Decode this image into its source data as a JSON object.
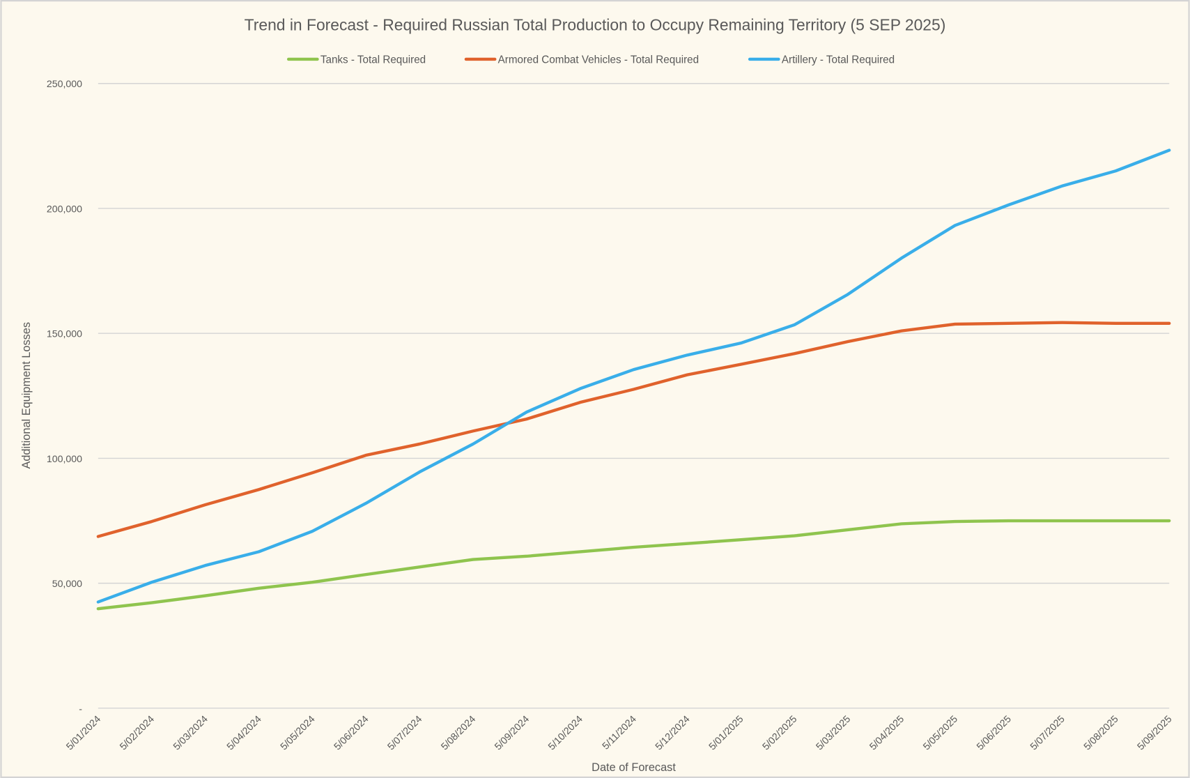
{
  "chart_data": {
    "type": "line",
    "title": "Trend in Forecast - Required Russian Total Production to Occupy Remaining Territory (5 SEP 2025)",
    "xlabel": "Date of Forecast",
    "ylabel": "Additional Equipment Losses",
    "ylim": [
      0,
      250000
    ],
    "yticks": [
      0,
      50000,
      100000,
      150000,
      200000,
      250000
    ],
    "ytick_labels": [
      "-",
      "50,000",
      "100,000",
      "150,000",
      "200,000",
      "250,000"
    ],
    "grid": true,
    "legend": "top",
    "x": [
      "5/01/2024",
      "5/02/2024",
      "5/03/2024",
      "5/04/2024",
      "5/05/2024",
      "5/06/2024",
      "5/07/2024",
      "5/08/2024",
      "5/09/2024",
      "5/10/2024",
      "5/11/2024",
      "5/12/2024",
      "5/01/2025",
      "5/02/2025",
      "5/03/2025",
      "5/04/2025",
      "5/05/2025",
      "5/06/2025",
      "5/07/2025",
      "5/08/2025",
      "5/09/2025"
    ],
    "series": [
      {
        "name": "Tanks - Total Required",
        "color": "#8fc44e",
        "values": [
          39800,
          42200,
          45000,
          48000,
          50400,
          53500,
          56500,
          59500,
          60800,
          62600,
          64400,
          65900,
          67400,
          69000,
          71400,
          73800,
          74700,
          75000,
          75000,
          75000,
          75000
        ]
      },
      {
        "name": "Armored Combat Vehicles - Total Required",
        "color": "#e0622c",
        "values": [
          68700,
          74700,
          81400,
          87500,
          94200,
          101200,
          105700,
          110900,
          115700,
          122400,
          127600,
          133400,
          137600,
          141900,
          146700,
          151000,
          153700,
          154000,
          154300,
          154000,
          154000
        ]
      },
      {
        "name": "Artillery - Total Required",
        "color": "#39aee9",
        "values": [
          42500,
          50400,
          57100,
          62600,
          70800,
          82000,
          94500,
          105700,
          118500,
          127900,
          135500,
          141300,
          146100,
          153400,
          165600,
          180100,
          193200,
          201400,
          209000,
          215000,
          223300
        ]
      }
    ]
  }
}
